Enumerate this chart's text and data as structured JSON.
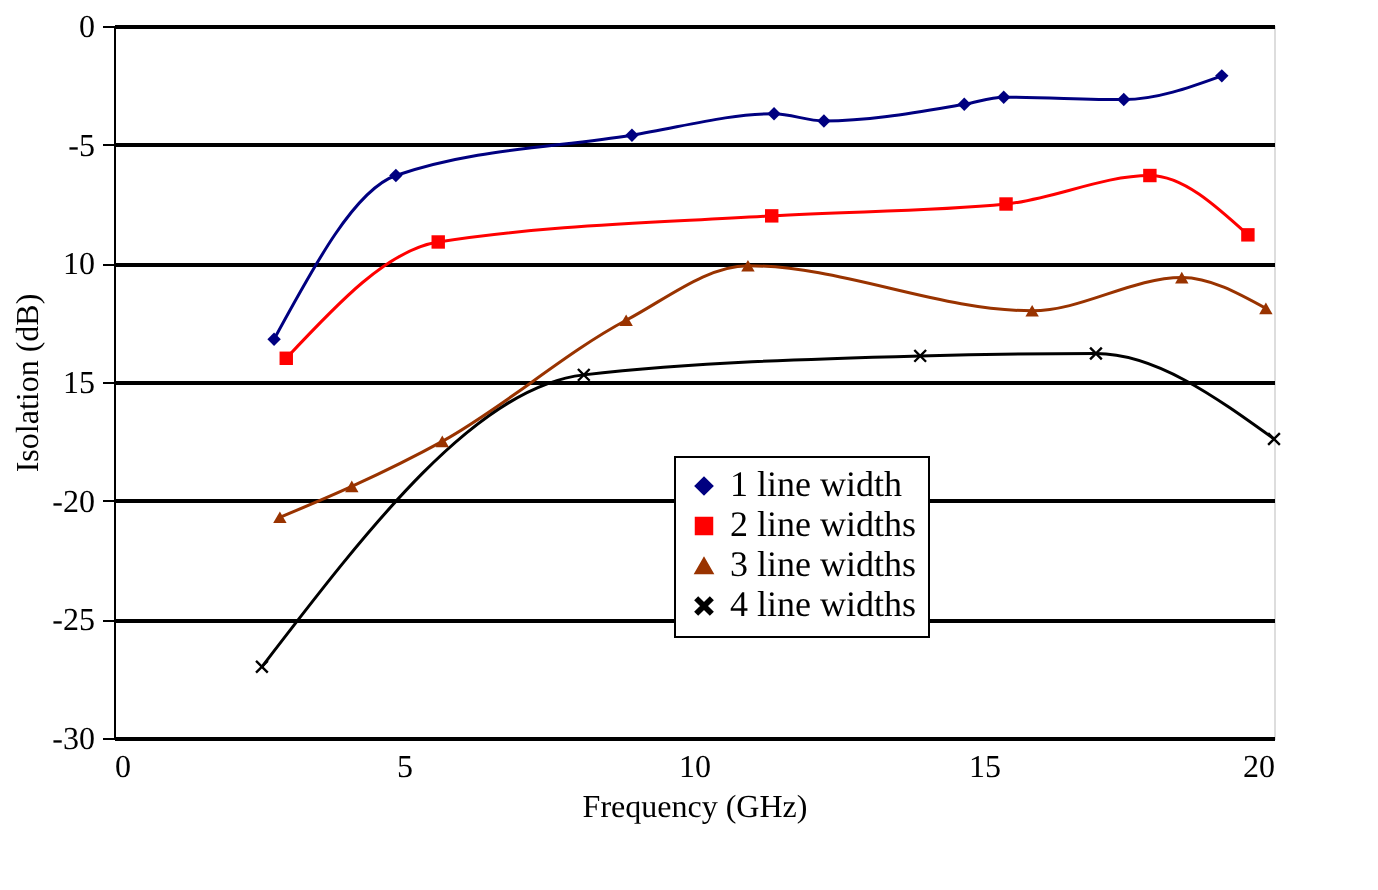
{
  "chart_data": {
    "type": "line",
    "xlabel": "Frequency (GHz)",
    "ylabel": "Isolation (dB)",
    "xlim": [
      0,
      20
    ],
    "xticks": [
      0,
      5,
      10,
      15,
      20
    ],
    "ylim": [
      -30,
      0
    ],
    "yticks": [
      0,
      -5,
      {
        "value": -10,
        "label": "10"
      },
      {
        "value": -15,
        "label": "15"
      },
      -20,
      -25,
      -30
    ],
    "grid": "y",
    "legend": "bottom right",
    "line_style": "solid",
    "series": [
      {
        "name": "1 line width",
        "color": "#000080",
        "marker": "diamond",
        "x": [
          2.76,
          4.86,
          8.93,
          11.38,
          12.24,
          14.66,
          15.34,
          17.41,
          19.1
        ],
        "values": [
          -13.2,
          -6.3,
          -4.6,
          -3.7,
          -4.0,
          -3.3,
          -3.0,
          -3.1,
          -2.1
        ]
      },
      {
        "name": "2 line widths",
        "color": "#ff0000",
        "marker": "square",
        "x": [
          2.97,
          5.59,
          11.34,
          15.38,
          17.86,
          19.55
        ],
        "values": [
          -14.0,
          -9.1,
          -8.0,
          -7.5,
          -6.3,
          -8.8
        ]
      },
      {
        "name": "3 line widths",
        "color": "#993300",
        "marker": "triangle",
        "x": [
          2.86,
          4.1,
          5.66,
          8.83,
          10.93,
          15.83,
          18.41,
          19.86
        ],
        "values": [
          -20.7,
          -19.4,
          -17.5,
          -12.4,
          -10.1,
          -12.0,
          -10.6,
          -11.9
        ]
      },
      {
        "name": "4 line widths",
        "color": "#000000",
        "marker": "cross",
        "x": [
          2.55,
          8.1,
          13.9,
          16.93,
          20.0
        ],
        "values": [
          -27.0,
          -14.7,
          -13.9,
          -13.8,
          -17.4
        ]
      }
    ]
  }
}
